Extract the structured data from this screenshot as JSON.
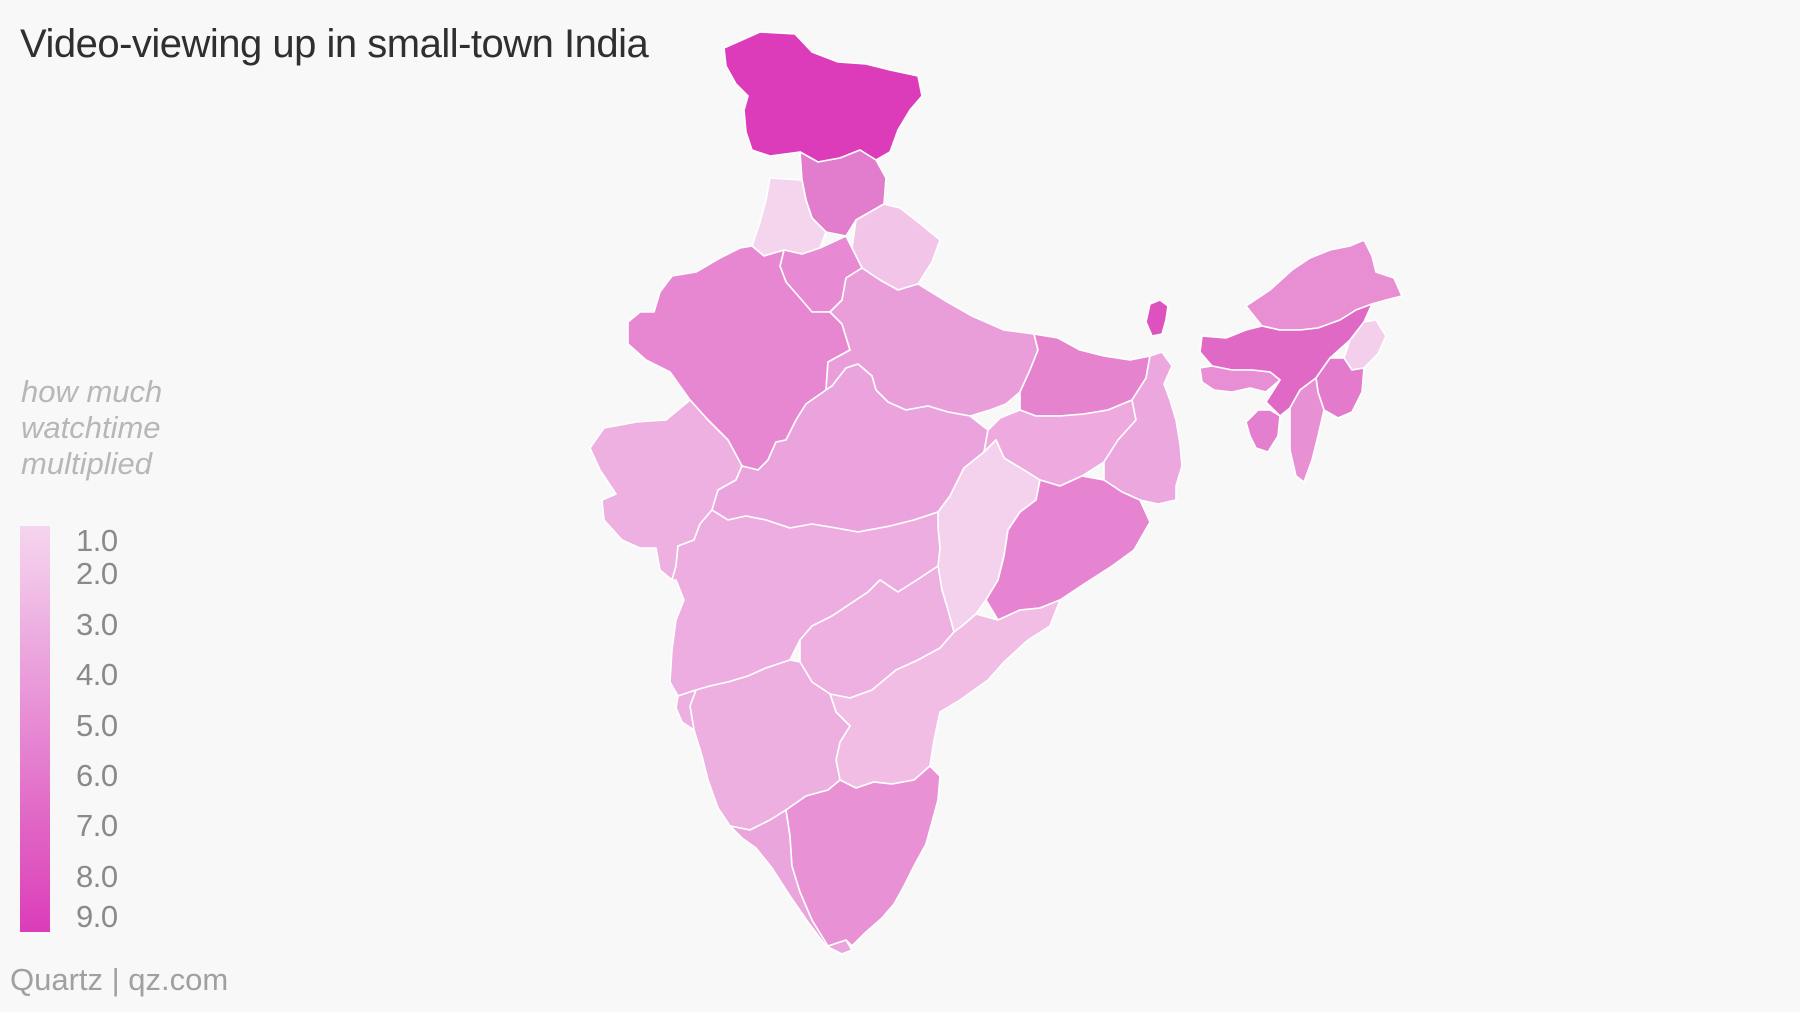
{
  "title": "Video-viewing up in small-town India",
  "legend": {
    "title_lines": [
      "how much",
      "watchtime",
      "multiplied"
    ],
    "stops": [
      {
        "label": "1.0",
        "color": "#f5d5ee"
      },
      {
        "label": "2.0",
        "color": "#f2c4e8"
      },
      {
        "label": "3.0",
        "color": "#edb0e1"
      },
      {
        "label": "4.0",
        "color": "#ea9dda"
      },
      {
        "label": "5.0",
        "color": "#e78ad3"
      },
      {
        "label": "6.0",
        "color": "#e378cc"
      },
      {
        "label": "7.0",
        "color": "#e064c4"
      },
      {
        "label": "8.0",
        "color": "#de52bf"
      },
      {
        "label": "9.0",
        "color": "#dc3cb9"
      }
    ]
  },
  "footer": "Quartz | qz.com",
  "regions": [
    {
      "id": "jammu-kashmir",
      "value": 9.0,
      "color": "#dc3cb9"
    },
    {
      "id": "himachal-pradesh",
      "value": 6.0,
      "color": "#e27ccd"
    },
    {
      "id": "punjab",
      "value": 1.0,
      "color": "#f5d5ee"
    },
    {
      "id": "uttarakhand",
      "value": 2.0,
      "color": "#f2c4e8"
    },
    {
      "id": "haryana",
      "value": 5.0,
      "color": "#e78ad3"
    },
    {
      "id": "rajasthan",
      "value": 5.0,
      "color": "#e787d1"
    },
    {
      "id": "uttar-pradesh",
      "value": 4.0,
      "color": "#ea9ed9"
    },
    {
      "id": "gujarat",
      "value": 3.0,
      "color": "#edb0e1"
    },
    {
      "id": "madhya-pradesh",
      "value": 4.0,
      "color": "#eaa3dc"
    },
    {
      "id": "bihar",
      "value": 6.0,
      "color": "#e583cf"
    },
    {
      "id": "jharkhand",
      "value": 3.0,
      "color": "#eeaadf"
    },
    {
      "id": "west-bengal",
      "value": 3.0,
      "color": "#eca8de"
    },
    {
      "id": "chhattisgarh",
      "value": 1.0,
      "color": "#f4d2ed"
    },
    {
      "id": "odisha",
      "value": 5.0,
      "color": "#e684d1"
    },
    {
      "id": "maharashtra",
      "value": 3.0,
      "color": "#edade0"
    },
    {
      "id": "telangana",
      "value": 3.0,
      "color": "#eeb0e1"
    },
    {
      "id": "andhra-pradesh",
      "value": 2.0,
      "color": "#f1bde5"
    },
    {
      "id": "karnataka",
      "value": 3.0,
      "color": "#edaee0"
    },
    {
      "id": "goa",
      "value": 3.0,
      "color": "#edaee0"
    },
    {
      "id": "kerala",
      "value": 4.0,
      "color": "#eba5dd"
    },
    {
      "id": "tamil-nadu",
      "value": 5.0,
      "color": "#e892d5"
    },
    {
      "id": "sikkim",
      "value": 8.0,
      "color": "#de52bf"
    },
    {
      "id": "arunachal-pradesh",
      "value": 5.0,
      "color": "#e88fd4"
    },
    {
      "id": "assam",
      "value": 7.0,
      "color": "#e069c6"
    },
    {
      "id": "meghalaya",
      "value": 5.0,
      "color": "#e88ed4"
    },
    {
      "id": "nagaland",
      "value": 1.0,
      "color": "#f4cfec"
    },
    {
      "id": "manipur",
      "value": 6.0,
      "color": "#e37acc"
    },
    {
      "id": "mizoram",
      "value": 5.0,
      "color": "#e890d4"
    },
    {
      "id": "tripura",
      "value": 6.0,
      "color": "#e37fce"
    }
  ]
}
